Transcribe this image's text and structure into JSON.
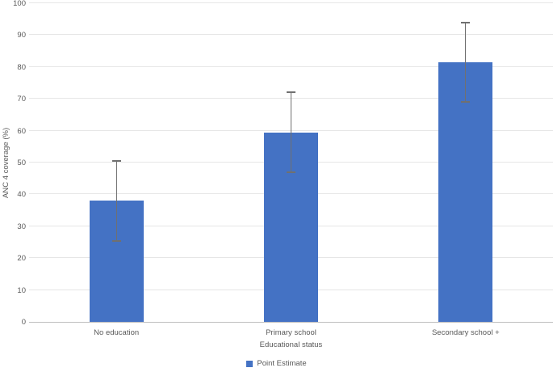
{
  "chart_data": {
    "type": "bar",
    "title": "",
    "xlabel": "Educational status",
    "ylabel": "ANC 4 coverage (%)",
    "categories": [
      "No education",
      "Primary school",
      "Secondary school +"
    ],
    "series": [
      {
        "name": "Point Estimate",
        "values": [
          38,
          59.5,
          81.5
        ]
      }
    ],
    "error_bars": {
      "low": [
        25.5,
        47,
        69
      ],
      "high": [
        50.5,
        72,
        94
      ]
    },
    "ylim": [
      0,
      100
    ],
    "ytick_step": 10,
    "grid": true,
    "legend": {
      "position": "bottom",
      "entries": [
        {
          "label": "Point Estimate",
          "color": "#4472C4"
        }
      ]
    },
    "colors": {
      "bar": "#4472C4",
      "error": "#707070",
      "gridline": "#E6E6E6",
      "axis_line": "#BFBFBF",
      "text": "#595959",
      "background": "#FFFFFF"
    }
  }
}
